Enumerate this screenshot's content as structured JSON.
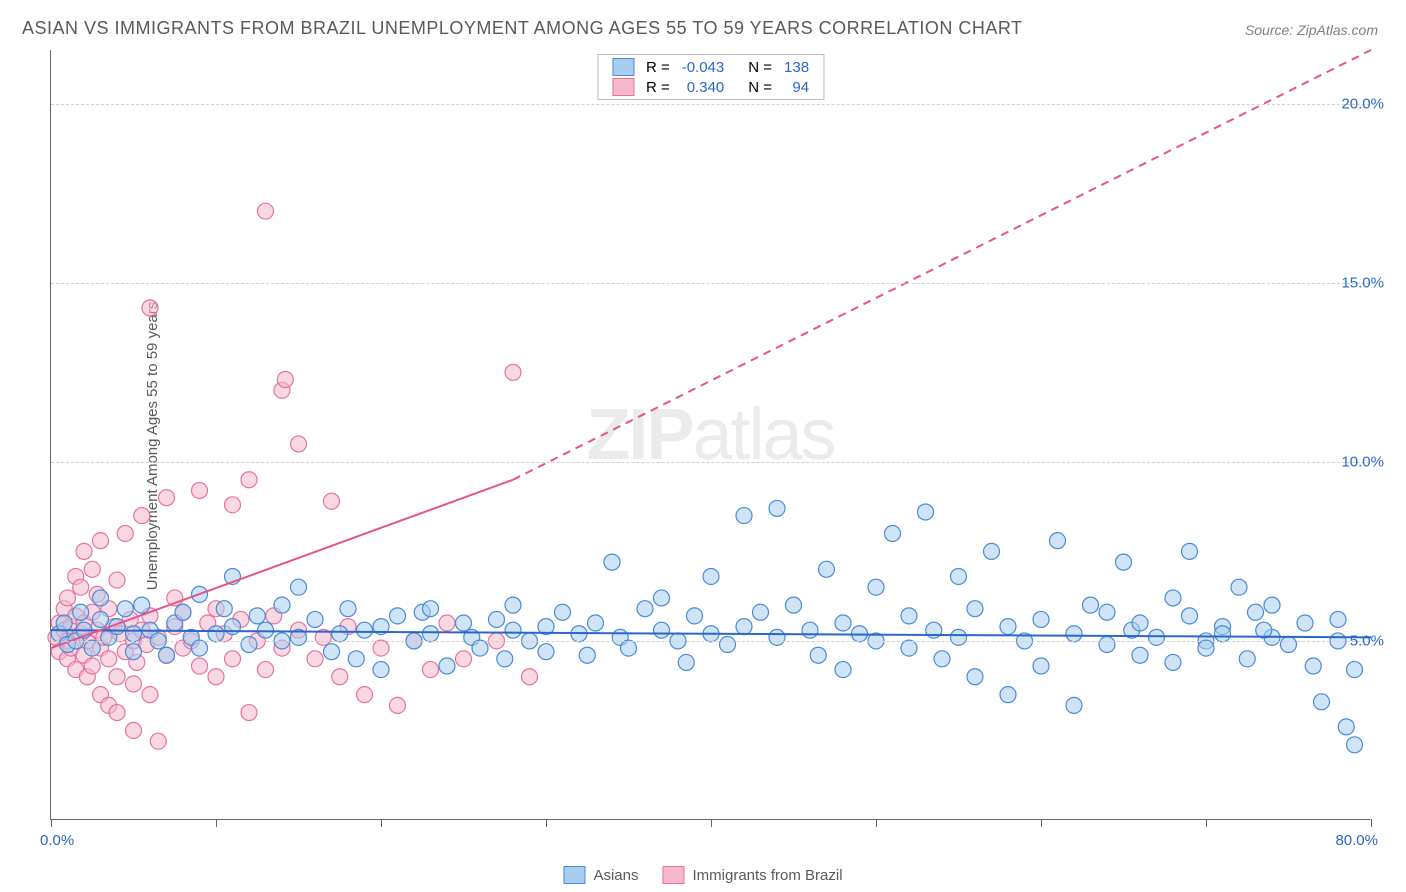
{
  "title": "ASIAN VS IMMIGRANTS FROM BRAZIL UNEMPLOYMENT AMONG AGES 55 TO 59 YEARS CORRELATION CHART",
  "source": "Source: ZipAtlas.com",
  "y_axis_label": "Unemployment Among Ages 55 to 59 years",
  "watermark_a": "ZIP",
  "watermark_b": "atlas",
  "x_origin_label": "0.0%",
  "x_max_label": "80.0%",
  "series": {
    "a": {
      "label": "Asians",
      "R_label": "R =",
      "R_value": "-0.043",
      "N_label": "N =",
      "N_value": "138",
      "fill": "#a8cdf0",
      "stroke": "#4a8bd6",
      "line_color": "#2968c8",
      "trend": {
        "x1": 0.0,
        "y1": 5.3,
        "x2": 80.0,
        "y2": 5.1
      }
    },
    "b": {
      "label": "Immigrants from Brazil",
      "R_label": "R =",
      "R_value": "0.340",
      "N_label": "N =",
      "N_value": "94",
      "fill": "#f5b8cc",
      "stroke": "#e6739f",
      "line_color": "#e6548c",
      "trend_solid": {
        "x1": 0.0,
        "y1": 4.8,
        "x2": 28.0,
        "y2": 9.5
      },
      "trend_dash": {
        "x1": 28.0,
        "y1": 9.5,
        "x2": 80.0,
        "y2": 21.5
      }
    }
  },
  "chart": {
    "type": "scatter",
    "x_domain": [
      0,
      80
    ],
    "y_domain": [
      0,
      21.5
    ],
    "y_ticks": [
      5.0,
      10.0,
      15.0,
      20.0
    ],
    "y_tick_labels": [
      "5.0%",
      "10.0%",
      "15.0%",
      "20.0%"
    ],
    "x_ticks": [
      0,
      10,
      20,
      30,
      40,
      50,
      60,
      70,
      80
    ],
    "marker_radius": 8,
    "marker_opacity": 0.55,
    "background_color": "#ffffff",
    "grid_color": "#d0d0d0",
    "title_fontsize": 18,
    "label_fontsize": 15
  },
  "points_a": [
    [
      0.5,
      5.2
    ],
    [
      0.8,
      5.5
    ],
    [
      1.0,
      4.9
    ],
    [
      1.5,
      5.0
    ],
    [
      1.8,
      5.8
    ],
    [
      2.0,
      5.3
    ],
    [
      2.5,
      4.8
    ],
    [
      3.0,
      5.6
    ],
    [
      3.0,
      6.2
    ],
    [
      3.5,
      5.1
    ],
    [
      4.0,
      5.4
    ],
    [
      4.5,
      5.9
    ],
    [
      5.0,
      4.7
    ],
    [
      5.0,
      5.2
    ],
    [
      5.5,
      6.0
    ],
    [
      6.0,
      5.3
    ],
    [
      6.5,
      5.0
    ],
    [
      7.0,
      4.6
    ],
    [
      7.5,
      5.5
    ],
    [
      8.0,
      5.8
    ],
    [
      8.5,
      5.1
    ],
    [
      9.0,
      4.8
    ],
    [
      9.0,
      6.3
    ],
    [
      10.0,
      5.2
    ],
    [
      10.5,
      5.9
    ],
    [
      11.0,
      5.4
    ],
    [
      11.0,
      6.8
    ],
    [
      12.0,
      4.9
    ],
    [
      12.5,
      5.7
    ],
    [
      13.0,
      5.3
    ],
    [
      14.0,
      6.0
    ],
    [
      14.0,
      5.0
    ],
    [
      15.0,
      5.1
    ],
    [
      15.0,
      6.5
    ],
    [
      16.0,
      5.6
    ],
    [
      17.0,
      4.7
    ],
    [
      17.5,
      5.2
    ],
    [
      18.0,
      5.9
    ],
    [
      18.5,
      4.5
    ],
    [
      19.0,
      5.3
    ],
    [
      20.0,
      5.4
    ],
    [
      20.0,
      4.2
    ],
    [
      21.0,
      5.7
    ],
    [
      22.0,
      5.0
    ],
    [
      22.5,
      5.8
    ],
    [
      23.0,
      5.2
    ],
    [
      23.0,
      5.9
    ],
    [
      24.0,
      4.3
    ],
    [
      25.0,
      5.5
    ],
    [
      25.5,
      5.1
    ],
    [
      26.0,
      4.8
    ],
    [
      27.0,
      5.6
    ],
    [
      27.5,
      4.5
    ],
    [
      28.0,
      5.3
    ],
    [
      28.0,
      6.0
    ],
    [
      29.0,
      5.0
    ],
    [
      30.0,
      5.4
    ],
    [
      30.0,
      4.7
    ],
    [
      31.0,
      5.8
    ],
    [
      32.0,
      5.2
    ],
    [
      32.5,
      4.6
    ],
    [
      33.0,
      5.5
    ],
    [
      34.0,
      7.2
    ],
    [
      34.5,
      5.1
    ],
    [
      35.0,
      4.8
    ],
    [
      36.0,
      5.9
    ],
    [
      37.0,
      5.3
    ],
    [
      37.0,
      6.2
    ],
    [
      38.0,
      5.0
    ],
    [
      38.5,
      4.4
    ],
    [
      39.0,
      5.7
    ],
    [
      40.0,
      5.2
    ],
    [
      40.0,
      6.8
    ],
    [
      41.0,
      4.9
    ],
    [
      42.0,
      5.4
    ],
    [
      42.0,
      8.5
    ],
    [
      43.0,
      5.8
    ],
    [
      44.0,
      5.1
    ],
    [
      44.0,
      8.7
    ],
    [
      45.0,
      6.0
    ],
    [
      46.0,
      5.3
    ],
    [
      46.5,
      4.6
    ],
    [
      47.0,
      7.0
    ],
    [
      48.0,
      5.5
    ],
    [
      48.0,
      4.2
    ],
    [
      49.0,
      5.2
    ],
    [
      50.0,
      6.5
    ],
    [
      50.0,
      5.0
    ],
    [
      51.0,
      8.0
    ],
    [
      52.0,
      4.8
    ],
    [
      52.0,
      5.7
    ],
    [
      53.0,
      8.6
    ],
    [
      53.5,
      5.3
    ],
    [
      54.0,
      4.5
    ],
    [
      55.0,
      6.8
    ],
    [
      55.0,
      5.1
    ],
    [
      56.0,
      4.0
    ],
    [
      56.0,
      5.9
    ],
    [
      57.0,
      7.5
    ],
    [
      58.0,
      5.4
    ],
    [
      58.0,
      3.5
    ],
    [
      59.0,
      5.0
    ],
    [
      60.0,
      5.6
    ],
    [
      60.0,
      4.3
    ],
    [
      61.0,
      7.8
    ],
    [
      62.0,
      5.2
    ],
    [
      62.0,
      3.2
    ],
    [
      63.0,
      6.0
    ],
    [
      64.0,
      4.9
    ],
    [
      64.0,
      5.8
    ],
    [
      65.0,
      7.2
    ],
    [
      65.5,
      5.3
    ],
    [
      66.0,
      4.6
    ],
    [
      66.0,
      5.5
    ],
    [
      67.0,
      5.1
    ],
    [
      68.0,
      4.4
    ],
    [
      68.0,
      6.2
    ],
    [
      69.0,
      5.7
    ],
    [
      69.0,
      7.5
    ],
    [
      70.0,
      5.0
    ],
    [
      70.0,
      4.8
    ],
    [
      71.0,
      5.4
    ],
    [
      71.0,
      5.2
    ],
    [
      72.0,
      6.5
    ],
    [
      72.5,
      4.5
    ],
    [
      73.0,
      5.8
    ],
    [
      74.0,
      6.0
    ],
    [
      74.0,
      5.1
    ],
    [
      75.0,
      4.9
    ],
    [
      76.0,
      5.5
    ],
    [
      77.0,
      3.3
    ],
    [
      78.0,
      5.0
    ],
    [
      78.0,
      5.6
    ],
    [
      78.5,
      2.6
    ],
    [
      79.0,
      2.1
    ],
    [
      79.0,
      4.2
    ],
    [
      76.5,
      4.3
    ],
    [
      73.5,
      5.3
    ]
  ],
  "points_b": [
    [
      0.3,
      5.1
    ],
    [
      0.5,
      5.5
    ],
    [
      0.5,
      4.7
    ],
    [
      0.8,
      5.3
    ],
    [
      0.8,
      5.9
    ],
    [
      1.0,
      4.5
    ],
    [
      1.0,
      5.0
    ],
    [
      1.0,
      6.2
    ],
    [
      1.2,
      5.4
    ],
    [
      1.2,
      4.8
    ],
    [
      1.5,
      5.7
    ],
    [
      1.5,
      4.2
    ],
    [
      1.5,
      6.8
    ],
    [
      1.8,
      5.2
    ],
    [
      1.8,
      6.5
    ],
    [
      2.0,
      4.6
    ],
    [
      2.0,
      5.5
    ],
    [
      2.0,
      7.5
    ],
    [
      2.2,
      5.0
    ],
    [
      2.2,
      4.0
    ],
    [
      2.5,
      5.8
    ],
    [
      2.5,
      4.3
    ],
    [
      2.5,
      7.0
    ],
    [
      2.8,
      5.3
    ],
    [
      2.8,
      6.3
    ],
    [
      3.0,
      4.8
    ],
    [
      3.0,
      3.5
    ],
    [
      3.0,
      7.8
    ],
    [
      3.2,
      5.1
    ],
    [
      3.5,
      4.5
    ],
    [
      3.5,
      5.9
    ],
    [
      3.5,
      3.2
    ],
    [
      3.8,
      5.4
    ],
    [
      4.0,
      4.0
    ],
    [
      4.0,
      6.7
    ],
    [
      4.0,
      3.0
    ],
    [
      4.2,
      5.2
    ],
    [
      4.5,
      4.7
    ],
    [
      4.5,
      8.0
    ],
    [
      4.8,
      5.6
    ],
    [
      5.0,
      3.8
    ],
    [
      5.0,
      5.0
    ],
    [
      5.0,
      2.5
    ],
    [
      5.2,
      4.4
    ],
    [
      5.5,
      5.3
    ],
    [
      5.5,
      8.5
    ],
    [
      5.8,
      4.9
    ],
    [
      6.0,
      5.7
    ],
    [
      6.0,
      3.5
    ],
    [
      6.0,
      14.3
    ],
    [
      6.5,
      5.1
    ],
    [
      6.5,
      2.2
    ],
    [
      7.0,
      4.6
    ],
    [
      7.0,
      9.0
    ],
    [
      7.5,
      5.4
    ],
    [
      7.5,
      6.2
    ],
    [
      8.0,
      4.8
    ],
    [
      8.0,
      5.8
    ],
    [
      8.5,
      5.0
    ],
    [
      9.0,
      4.3
    ],
    [
      9.0,
      9.2
    ],
    [
      9.5,
      5.5
    ],
    [
      10.0,
      4.0
    ],
    [
      10.0,
      5.9
    ],
    [
      10.5,
      5.2
    ],
    [
      11.0,
      4.5
    ],
    [
      11.0,
      8.8
    ],
    [
      11.5,
      5.6
    ],
    [
      12.0,
      3.0
    ],
    [
      12.0,
      9.5
    ],
    [
      12.5,
      5.0
    ],
    [
      13.0,
      4.2
    ],
    [
      13.0,
      17.0
    ],
    [
      13.5,
      5.7
    ],
    [
      14.0,
      4.8
    ],
    [
      14.0,
      12.0
    ],
    [
      14.2,
      12.3
    ],
    [
      15.0,
      5.3
    ],
    [
      15.0,
      10.5
    ],
    [
      16.0,
      4.5
    ],
    [
      16.5,
      5.1
    ],
    [
      17.0,
      8.9
    ],
    [
      17.5,
      4.0
    ],
    [
      18.0,
      5.4
    ],
    [
      19.0,
      3.5
    ],
    [
      20.0,
      4.8
    ],
    [
      21.0,
      3.2
    ],
    [
      22.0,
      5.0
    ],
    [
      23.0,
      4.2
    ],
    [
      24.0,
      5.5
    ],
    [
      25.0,
      4.5
    ],
    [
      27.0,
      5.0
    ],
    [
      28.0,
      12.5
    ],
    [
      29.0,
      4.0
    ]
  ]
}
